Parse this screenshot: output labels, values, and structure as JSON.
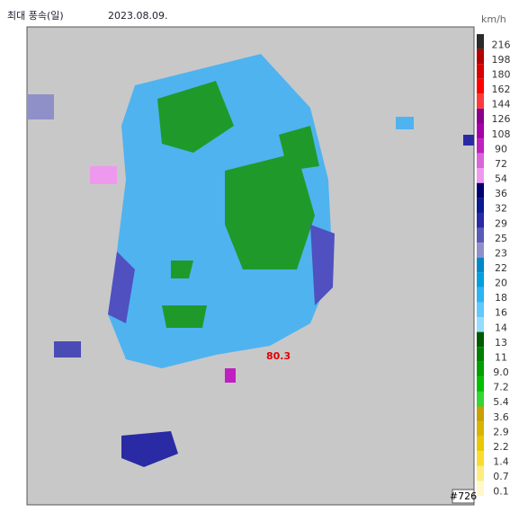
{
  "header": {
    "title": "최대 풍속(일)",
    "date": "2023.08.09.",
    "unit": "km/h"
  },
  "legend": {
    "items": [
      {
        "label": "216",
        "color": "#2b2b2b"
      },
      {
        "label": "198",
        "color": "#b30000"
      },
      {
        "label": "180",
        "color": "#d90000"
      },
      {
        "label": "162",
        "color": "#ff0000"
      },
      {
        "label": "144",
        "color": "#ff3a3a"
      },
      {
        "label": "126",
        "color": "#8a008a"
      },
      {
        "label": "108",
        "color": "#a800a8"
      },
      {
        "label": "90",
        "color": "#c020c0"
      },
      {
        "label": "72",
        "color": "#d966d9"
      },
      {
        "label": "54",
        "color": "#ee99ee"
      },
      {
        "label": "36",
        "color": "#000070"
      },
      {
        "label": "32",
        "color": "#0b1a90"
      },
      {
        "label": "29",
        "color": "#2a2aa5"
      },
      {
        "label": "25",
        "color": "#5a5ab8"
      },
      {
        "label": "23",
        "color": "#9090c8"
      },
      {
        "label": "22",
        "color": "#0088c8"
      },
      {
        "label": "20",
        "color": "#00a0e0"
      },
      {
        "label": "18",
        "color": "#2ab4f5"
      },
      {
        "label": "16",
        "color": "#60c8fa"
      },
      {
        "label": "14",
        "color": "#96dcff"
      },
      {
        "label": "13",
        "color": "#005a00"
      },
      {
        "label": "11",
        "color": "#008000"
      },
      {
        "label": "9.0",
        "color": "#00a000"
      },
      {
        "label": "7.2",
        "color": "#00c000"
      },
      {
        "label": "5.4",
        "color": "#33d633"
      },
      {
        "label": "3.6",
        "color": "#c8a000"
      },
      {
        "label": "2.9",
        "color": "#d8b400"
      },
      {
        "label": "2.2",
        "color": "#e8c800"
      },
      {
        "label": "1.4",
        "color": "#f8dc30"
      },
      {
        "label": "0.7",
        "color": "#ffec80"
      },
      {
        "label": "0.1",
        "color": "#fff8c8"
      }
    ]
  },
  "annotation": "80.3",
  "badge": "#726"
}
